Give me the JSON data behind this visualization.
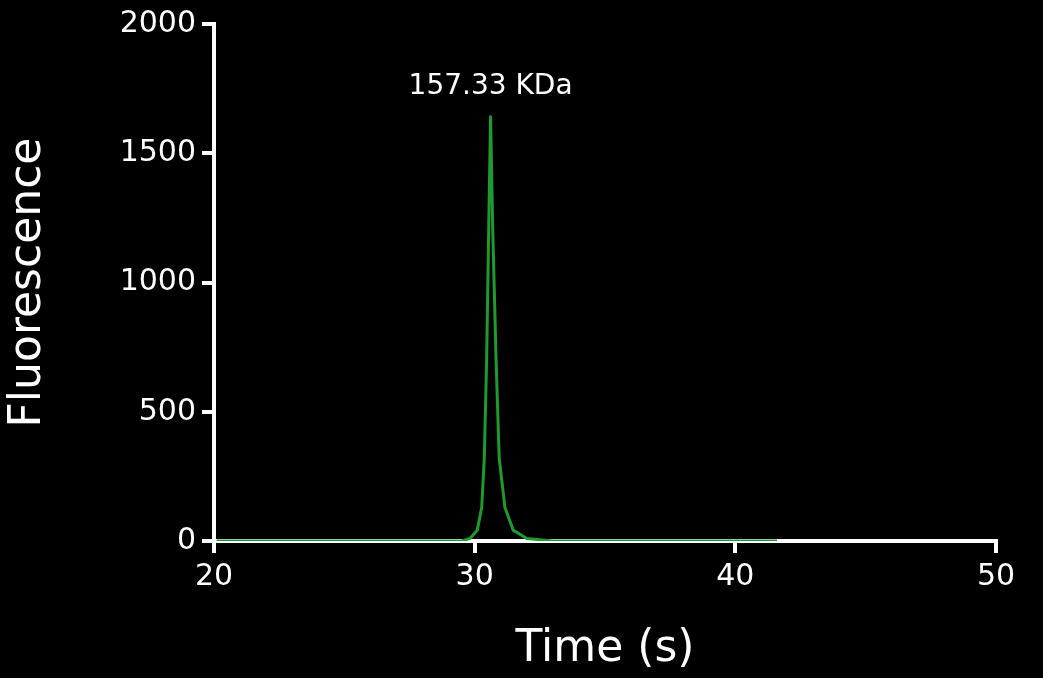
{
  "chart_data": {
    "type": "line",
    "xlabel": "Time (s)",
    "ylabel": "Fluorescence",
    "xlim": [
      20,
      50
    ],
    "xticks": [
      20,
      30,
      40,
      50
    ],
    "ylim": [
      0,
      2000
    ],
    "yticks": [
      0,
      500,
      1000,
      1500,
      2000
    ],
    "grid": false,
    "legend": false,
    "marker": "none",
    "line_style": "solid",
    "annotations": [
      {
        "text": "157.33 KDa",
        "x": 30.61,
        "y": 1641
      }
    ],
    "series": [
      {
        "color": "#1f9a2e",
        "x": [
          20.1,
          25,
          29.5,
          29.82,
          30.1,
          30.27,
          30.37,
          30.46,
          30.54,
          30.61,
          30.69,
          30.82,
          30.94,
          31.16,
          31.48,
          32.0,
          33,
          37,
          41.6
        ],
        "values": [
          0,
          0,
          0,
          10,
          42,
          130,
          322,
          705,
          1218,
          1641,
          1218,
          705,
          322,
          130,
          42,
          10,
          0,
          0,
          0
        ]
      }
    ]
  }
}
